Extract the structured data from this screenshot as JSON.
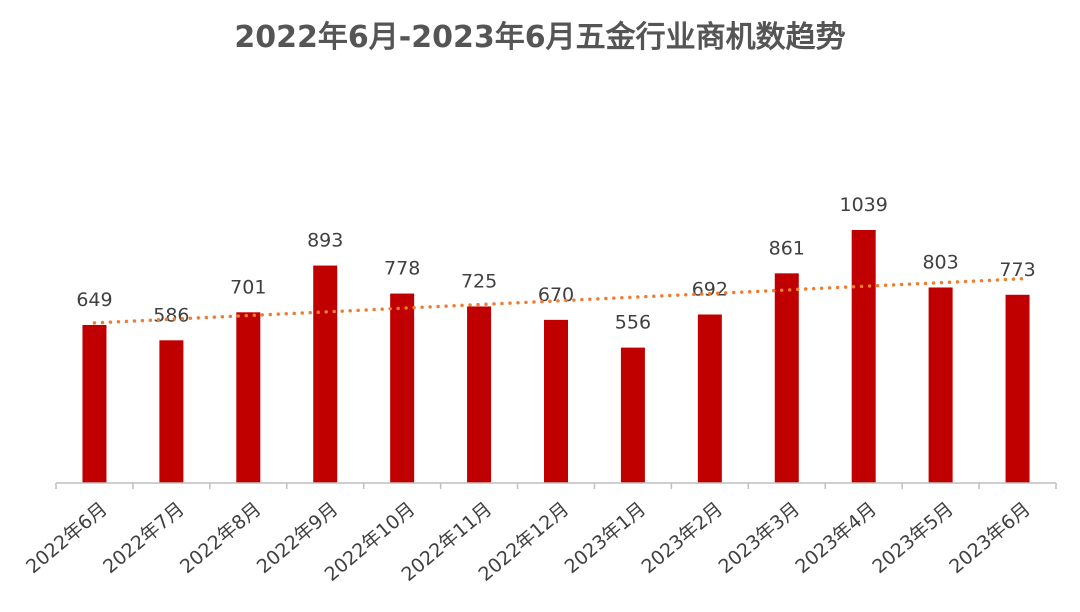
{
  "chart_data": {
    "type": "bar",
    "title": "2022年6月-2023年6月五金行业商机数趋势",
    "categories": [
      "2022年6月",
      "2022年7月",
      "2022年8月",
      "2022年9月",
      "2022年10月",
      "2022年11月",
      "2022年12月",
      "2023年1月",
      "2023年2月",
      "2023年3月",
      "2023年4月",
      "2023年5月",
      "2023年6月"
    ],
    "values": [
      649,
      586,
      701,
      893,
      778,
      725,
      670,
      556,
      692,
      861,
      1039,
      803,
      773
    ],
    "ylim": [
      0,
      1039
    ],
    "trendline": "linear",
    "colors": {
      "bar": "#C00000",
      "trendline": "#ED7D31",
      "axis": "#BFBFBF",
      "text": "#404040",
      "title": "#555555"
    },
    "grid": false,
    "legend": "none"
  }
}
